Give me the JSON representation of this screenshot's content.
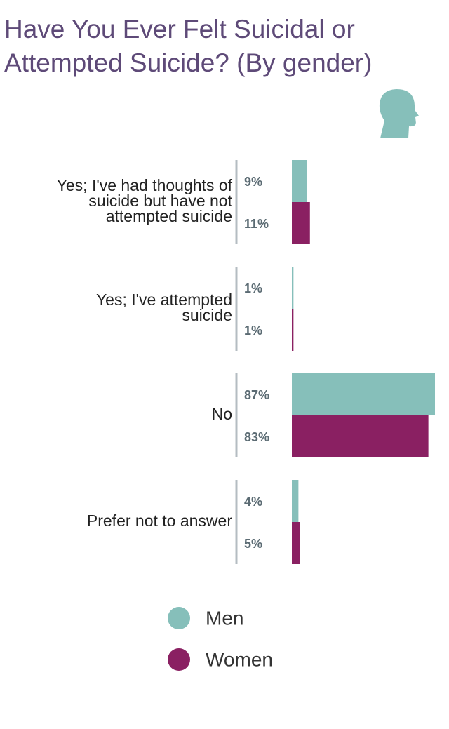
{
  "chart_data": {
    "type": "barh",
    "title": "Have You Ever Felt Suicidal or Attempted Suicide? (By gender)",
    "categories": [
      "Yes; I've had thoughts of suicide but have not attempted suicide",
      "Yes; I've attempted suicide",
      "No",
      "Prefer not to answer"
    ],
    "series": [
      {
        "name": "Men",
        "color": "#86bfba",
        "values": [
          9,
          1,
          87,
          4
        ],
        "value_labels": [
          "9%",
          "1%",
          "87%",
          "4%"
        ]
      },
      {
        "name": "Women",
        "color": "#8a2062",
        "values": [
          11,
          1,
          83,
          5
        ],
        "value_labels": [
          "11%",
          "1%",
          "83%",
          "5%"
        ]
      }
    ]
  }
}
